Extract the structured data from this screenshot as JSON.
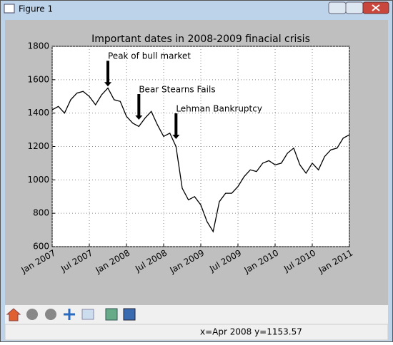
{
  "window": {
    "title": "Figure 1",
    "status": "x=Apr 2008 y=1153.57"
  },
  "chart_data": {
    "type": "line",
    "title": "Important dates in 2008-2009 finacial crisis",
    "x": [
      "2007-01",
      "2007-02",
      "2007-03",
      "2007-04",
      "2007-05",
      "2007-06",
      "2007-07",
      "2007-08",
      "2007-09",
      "2007-10",
      "2007-11",
      "2007-12",
      "2008-01",
      "2008-02",
      "2008-03",
      "2008-04",
      "2008-05",
      "2008-06",
      "2008-07",
      "2008-08",
      "2008-09",
      "2008-10",
      "2008-11",
      "2008-12",
      "2009-01",
      "2009-02",
      "2009-03",
      "2009-04",
      "2009-05",
      "2009-06",
      "2009-07",
      "2009-08",
      "2009-09",
      "2009-10",
      "2009-11",
      "2009-12",
      "2010-01",
      "2010-02",
      "2010-03",
      "2010-04",
      "2010-05",
      "2010-06",
      "2010-07",
      "2010-08",
      "2010-09",
      "2010-10",
      "2010-11",
      "2010-12",
      "2011-01"
    ],
    "values": [
      1420,
      1440,
      1400,
      1480,
      1520,
      1530,
      1500,
      1450,
      1510,
      1550,
      1480,
      1470,
      1380,
      1340,
      1320,
      1370,
      1410,
      1330,
      1260,
      1280,
      1200,
      950,
      880,
      900,
      850,
      750,
      690,
      870,
      920,
      920,
      960,
      1020,
      1060,
      1050,
      1100,
      1115,
      1090,
      1100,
      1160,
      1190,
      1090,
      1040,
      1100,
      1060,
      1140,
      1180,
      1190,
      1250,
      1270
    ],
    "color": "#000000",
    "xlim": [
      "2007-01",
      "2011-01"
    ],
    "xticks": [
      {
        "value": "2007-01",
        "label": "Jan 2007"
      },
      {
        "value": "2007-07",
        "label": "Jul 2007"
      },
      {
        "value": "2008-01",
        "label": "Jan 2008"
      },
      {
        "value": "2008-07",
        "label": "Jul 2008"
      },
      {
        "value": "2009-01",
        "label": "Jan 2009"
      },
      {
        "value": "2009-07",
        "label": "Jul 2009"
      },
      {
        "value": "2010-01",
        "label": "Jan 2010"
      },
      {
        "value": "2010-07",
        "label": "Jul 2010"
      },
      {
        "value": "2011-01",
        "label": "Jan 2011"
      }
    ],
    "ylim": [
      600,
      1800
    ],
    "yticks": [
      600,
      800,
      1000,
      1200,
      1400,
      1600,
      1800
    ],
    "grid": true,
    "annotations": [
      {
        "text": "Peak of bull market",
        "x": "2007-10",
        "y": 1560
      },
      {
        "text": "Bear Stearns Fails",
        "x": "2008-03",
        "y": 1360
      },
      {
        "text": "Lehman Bankruptcy",
        "x": "2008-09",
        "y": 1245
      }
    ]
  }
}
